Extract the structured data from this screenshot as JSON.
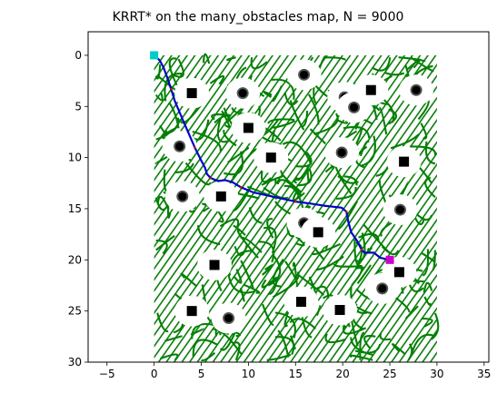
{
  "chart_data": {
    "type": "scatter",
    "title": "KRRT* on the many_obstacles map, N = 9000",
    "xlabel": "",
    "ylabel": "",
    "xlim": [
      -7,
      35.5
    ],
    "ylim": [
      30,
      -2.3
    ],
    "y_inverted": true,
    "grid": false,
    "legend": "none",
    "xticks": [
      -5,
      0,
      5,
      10,
      15,
      20,
      25,
      30,
      35
    ],
    "yticks": [
      0,
      5,
      10,
      15,
      20,
      25,
      30
    ],
    "xtick_labels": [
      "−5",
      "0",
      "5",
      "10",
      "15",
      "20",
      "25",
      "30",
      "35"
    ],
    "ytick_labels": [
      "0",
      "5",
      "10",
      "15",
      "20",
      "25",
      "30"
    ],
    "tree": {
      "color": "#008000",
      "x_range": [
        0,
        30
      ],
      "y_range": [
        0,
        30
      ]
    },
    "start": {
      "x": 0,
      "y": 0,
      "color": "#00CCCC"
    },
    "goal": {
      "x": 25,
      "y": 20,
      "color": "#CC00CC"
    },
    "path": {
      "color": "#0000CC",
      "waypoint_color": "#CC0000",
      "points": [
        [
          0,
          0
        ],
        [
          0.6,
          0.5
        ],
        [
          1.0,
          1.2
        ],
        [
          1.4,
          2.2
        ],
        [
          1.8,
          3.3
        ],
        [
          2.2,
          4.5
        ],
        [
          2.9,
          6.0
        ],
        [
          3.6,
          7.5
        ],
        [
          4.3,
          9.0
        ],
        [
          5.0,
          10.3
        ],
        [
          5.4,
          11.0
        ],
        [
          5.6,
          11.6
        ],
        [
          6.0,
          12.0
        ],
        [
          6.8,
          12.3
        ],
        [
          7.5,
          12.2
        ],
        [
          8.3,
          12.4
        ],
        [
          9.2,
          12.9
        ],
        [
          10.5,
          13.4
        ],
        [
          12.0,
          13.7
        ],
        [
          13.5,
          14.0
        ],
        [
          15.0,
          14.3
        ],
        [
          16.6,
          14.5
        ],
        [
          18.0,
          14.7
        ],
        [
          19.9,
          14.9
        ],
        [
          20.4,
          15.3
        ],
        [
          20.6,
          16.3
        ],
        [
          20.9,
          17.3
        ],
        [
          21.5,
          18.1
        ],
        [
          22.0,
          19.0
        ],
        [
          22.3,
          19.3
        ],
        [
          23.3,
          19.3
        ],
        [
          24.0,
          19.8
        ],
        [
          25,
          20
        ]
      ]
    },
    "obstacles": [
      {
        "shape": "square",
        "x": 4.0,
        "y": 3.7
      },
      {
        "shape": "circle",
        "x": 9.4,
        "y": 3.7
      },
      {
        "shape": "circle",
        "x": 15.9,
        "y": 1.9
      },
      {
        "shape": "circle",
        "x": 20.2,
        "y": 4.1
      },
      {
        "shape": "circle",
        "x": 21.2,
        "y": 5.1
      },
      {
        "shape": "square",
        "x": 23.0,
        "y": 3.4
      },
      {
        "shape": "circle",
        "x": 27.8,
        "y": 3.4
      },
      {
        "shape": "square",
        "x": 10.0,
        "y": 7.1
      },
      {
        "shape": "circle",
        "x": 2.7,
        "y": 8.9
      },
      {
        "shape": "square",
        "x": 12.4,
        "y": 10.0
      },
      {
        "shape": "circle",
        "x": 19.9,
        "y": 9.5
      },
      {
        "shape": "square",
        "x": 26.5,
        "y": 10.4
      },
      {
        "shape": "circle",
        "x": 3.0,
        "y": 13.8
      },
      {
        "shape": "square",
        "x": 7.1,
        "y": 13.8
      },
      {
        "shape": "circle",
        "x": 26.1,
        "y": 15.1
      },
      {
        "shape": "circle",
        "x": 15.9,
        "y": 16.4
      },
      {
        "shape": "square",
        "x": 17.4,
        "y": 17.3
      },
      {
        "shape": "square",
        "x": 6.4,
        "y": 20.5
      },
      {
        "shape": "square",
        "x": 26.0,
        "y": 21.2
      },
      {
        "shape": "circle",
        "x": 24.2,
        "y": 22.8
      },
      {
        "shape": "square",
        "x": 15.6,
        "y": 24.1
      },
      {
        "shape": "square",
        "x": 4.0,
        "y": 25.0
      },
      {
        "shape": "circle",
        "x": 7.9,
        "y": 25.7
      },
      {
        "shape": "square",
        "x": 19.7,
        "y": 24.9
      }
    ]
  }
}
